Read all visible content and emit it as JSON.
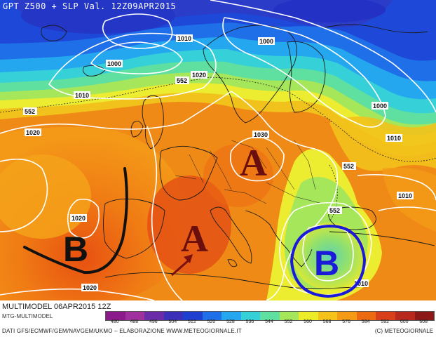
{
  "title": "GPT Z500 + SLP Val. 12Z09APR2015",
  "run_label": "MULTIMODEL 06APR2015 12Z",
  "sub_label": "MTG-MULTIMODEL",
  "credits": "DATI GFS/ECMWF/GEM/NAVGEM/UKMO – ELABORAZIONE WWW.METEOGIORNALE.IT",
  "copyright": "(C) METEOGIORNALE",
  "colorbar": {
    "ticks": [
      "480",
      "488",
      "496",
      "504",
      "512",
      "520",
      "528",
      "536",
      "544",
      "552",
      "560",
      "568",
      "576",
      "584",
      "592",
      "600",
      "608"
    ],
    "colors": [
      "#8b1a8b",
      "#a0309e",
      "#6a2ca8",
      "#3c30b8",
      "#1e3fd0",
      "#1f6fe8",
      "#25a7f0",
      "#36d0d8",
      "#5fe0a0",
      "#a6e65a",
      "#ecec28",
      "#f5c21a",
      "#f49a14",
      "#ec6a12",
      "#d8401a",
      "#b8281c",
      "#8c1818"
    ]
  },
  "isobar_labels": [
    {
      "id": "1010-nw",
      "text": "1010"
    },
    {
      "id": "1000-nw",
      "text": "1000"
    },
    {
      "id": "1010-w",
      "text": "1010"
    },
    {
      "id": "552-w",
      "text": "552"
    },
    {
      "id": "1020-w",
      "text": "1020"
    },
    {
      "id": "552-n",
      "text": "552"
    },
    {
      "id": "1020-n",
      "text": "1020"
    },
    {
      "id": "1000-ne",
      "text": "1000"
    },
    {
      "id": "1000-e",
      "text": "1000"
    },
    {
      "id": "1010-e",
      "text": "1010"
    },
    {
      "id": "1030-c",
      "text": "1030"
    },
    {
      "id": "552-e",
      "text": "552"
    },
    {
      "id": "552-se",
      "text": "552"
    },
    {
      "id": "1010-far-e",
      "text": "1010"
    },
    {
      "id": "1020-iberia",
      "text": "1020"
    },
    {
      "id": "1020-sw",
      "text": "1020"
    },
    {
      "id": "1010-s",
      "text": "1010"
    }
  ],
  "annotations": [
    {
      "id": "high-central",
      "text": "A"
    },
    {
      "id": "high-med",
      "text": "A"
    },
    {
      "id": "low-atlantic",
      "text": "B"
    },
    {
      "id": "low-greece",
      "text": "B"
    }
  ]
}
